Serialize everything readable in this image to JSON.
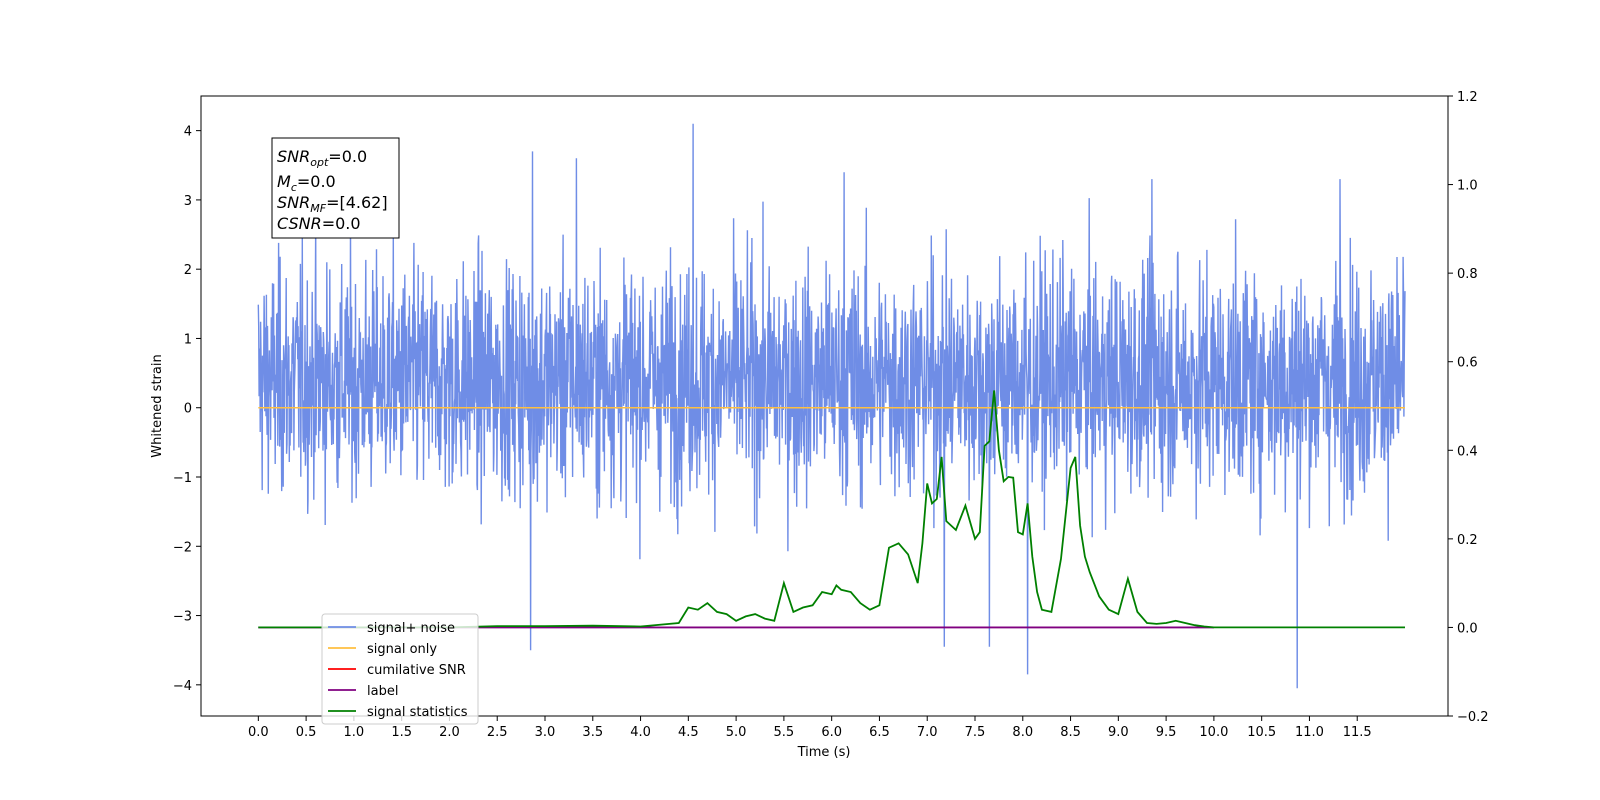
{
  "chart_data": {
    "type": "line",
    "xlabel": "Time (s)",
    "ylabel": "Whitened strain",
    "xlim": [
      -0.6,
      12.45
    ],
    "ylim": [
      -4.45,
      4.5
    ],
    "y2lim": [
      -0.2,
      1.2
    ],
    "x_ticks": [
      "0.0",
      "0.5",
      "1.0",
      "1.5",
      "2.0",
      "2.5",
      "3.0",
      "3.5",
      "4.0",
      "4.5",
      "5.0",
      "5.5",
      "6.0",
      "6.5",
      "7.0",
      "7.5",
      "8.0",
      "8.5",
      "9.0",
      "9.5",
      "10.0",
      "10.5",
      "11.0",
      "11.5"
    ],
    "y_ticks": [
      "4",
      "3",
      "2",
      "1",
      "0",
      "−1",
      "−2",
      "−3",
      "−4"
    ],
    "y2_ticks": [
      "1.2",
      "1.0",
      "0.8",
      "0.6",
      "0.4",
      "0.2",
      "0.0",
      "−0.2"
    ],
    "grid": false,
    "legend_position": "lower-left",
    "annotation": {
      "snr_opt": {
        "symbol": "SNR",
        "sub": "opt",
        "value": "=0.0"
      },
      "mc": {
        "symbol": "M",
        "sub": "c",
        "value": "=0.0"
      },
      "snr_mf": {
        "symbol": "SNR",
        "sub": "MF",
        "value": "=[4.62]"
      },
      "csnr": {
        "symbol": "CSNR",
        "sub": "",
        "value": "=0.0"
      }
    },
    "series": [
      {
        "name": "signal+ noise",
        "color": "#6f8de6",
        "axis": "left",
        "x_range": [
          0.0,
          12.0
        ],
        "envelope_upper": 2.5,
        "envelope_lower": -1.7,
        "peak_max": 4.1,
        "peak_min": -4.05,
        "spikes": [
          [
            4.55,
            4.1
          ],
          [
            2.87,
            3.7
          ],
          [
            3.33,
            3.6
          ],
          [
            10.87,
            -4.05
          ],
          [
            8.05,
            -3.85
          ],
          [
            2.85,
            -3.5
          ],
          [
            7.18,
            -3.45
          ],
          [
            7.65,
            -3.45
          ],
          [
            6.13,
            3.4
          ],
          [
            9.35,
            3.3
          ],
          [
            11.32,
            3.3
          ]
        ]
      },
      {
        "name": "signal only",
        "color": "#ffbf40",
        "axis": "left",
        "x": [
          0.0,
          12.0
        ],
        "y": [
          0.0,
          0.0
        ]
      },
      {
        "name": "cumilative SNR",
        "color": "#ff0000",
        "axis": "right",
        "x": [],
        "y": []
      },
      {
        "name": "label",
        "color": "#800080",
        "axis": "right",
        "x": [
          0.0,
          10.0
        ],
        "y": [
          0.0,
          0.0
        ]
      },
      {
        "name": "signal statistics",
        "color": "#008000",
        "axis": "right",
        "x": [
          0.0,
          2.0,
          2.5,
          3.0,
          3.5,
          4.0,
          4.4,
          4.5,
          4.6,
          4.7,
          4.8,
          4.9,
          5.0,
          5.1,
          5.2,
          5.3,
          5.4,
          5.5,
          5.6,
          5.7,
          5.8,
          5.9,
          6.0,
          6.05,
          6.1,
          6.2,
          6.3,
          6.4,
          6.5,
          6.6,
          6.7,
          6.8,
          6.9,
          6.95,
          7.0,
          7.05,
          7.1,
          7.15,
          7.2,
          7.3,
          7.4,
          7.5,
          7.55,
          7.6,
          7.65,
          7.7,
          7.75,
          7.8,
          7.85,
          7.9,
          7.95,
          8.0,
          8.05,
          8.1,
          8.15,
          8.2,
          8.3,
          8.4,
          8.5,
          8.55,
          8.6,
          8.65,
          8.7,
          8.8,
          8.9,
          9.0,
          9.1,
          9.2,
          9.3,
          9.4,
          9.5,
          9.6,
          9.7,
          9.8,
          9.9,
          10.0,
          10.5,
          11.0,
          11.5,
          12.0
        ],
        "y": [
          0.0,
          0.0,
          0.003,
          0.003,
          0.004,
          0.002,
          0.01,
          0.045,
          0.04,
          0.055,
          0.035,
          0.03,
          0.015,
          0.025,
          0.03,
          0.02,
          0.015,
          0.1,
          0.035,
          0.045,
          0.05,
          0.08,
          0.075,
          0.095,
          0.085,
          0.08,
          0.055,
          0.04,
          0.05,
          0.18,
          0.19,
          0.165,
          0.1,
          0.19,
          0.325,
          0.28,
          0.29,
          0.385,
          0.24,
          0.22,
          0.275,
          0.2,
          0.215,
          0.41,
          0.42,
          0.535,
          0.4,
          0.33,
          0.34,
          0.338,
          0.215,
          0.21,
          0.28,
          0.16,
          0.08,
          0.04,
          0.035,
          0.155,
          0.36,
          0.385,
          0.23,
          0.16,
          0.125,
          0.07,
          0.04,
          0.03,
          0.11,
          0.035,
          0.01,
          0.008,
          0.01,
          0.015,
          0.01,
          0.005,
          0.002,
          0.0,
          0.0,
          0.0,
          0.0,
          0.0
        ]
      }
    ]
  }
}
